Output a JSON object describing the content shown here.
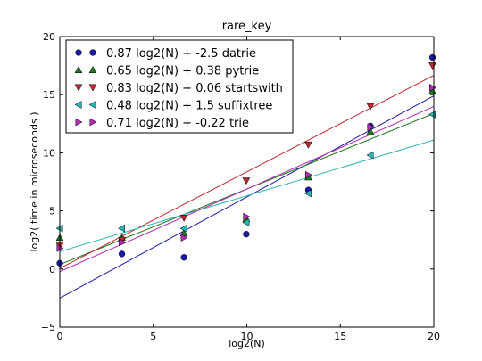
{
  "chart_data": {
    "type": "scatter",
    "title": "rare_key",
    "xlabel": "log2(N)",
    "ylabel": "log2( time in microseconds )",
    "xlim": [
      0,
      20
    ],
    "ylim": [
      -5,
      20
    ],
    "xticks": [
      "0",
      "5",
      "10",
      "15",
      "20"
    ],
    "yticks": [
      "−5",
      "0",
      "5",
      "10",
      "15",
      "20"
    ],
    "legend_position": "upper-left",
    "grid": false,
    "series": [
      {
        "name": "0.87 log2(N) + -2.5 datrie",
        "marker": "circle",
        "color": "#1a1aa6",
        "fit": {
          "slope": 0.87,
          "intercept": -2.5
        },
        "x": [
          0,
          3.32,
          6.64,
          9.97,
          13.29,
          16.61,
          19.93
        ],
        "y": [
          0.5,
          1.3,
          1.0,
          3.0,
          6.8,
          12.3,
          18.2
        ]
      },
      {
        "name": "0.65 log2(N) + 0.38 pytrie",
        "marker": "triangle-up",
        "color": "#1a7a1a",
        "fit": {
          "slope": 0.65,
          "intercept": 0.38
        },
        "x": [
          0,
          3.32,
          6.64,
          9.97,
          13.29,
          16.61,
          19.93
        ],
        "y": [
          2.7,
          2.7,
          3.1,
          4.3,
          7.9,
          11.8,
          15.3
        ]
      },
      {
        "name": "0.83 log2(N) + 0.06 startswith",
        "marker": "triangle-down",
        "color": "#c0282d",
        "fit": {
          "slope": 0.83,
          "intercept": 0.06
        },
        "x": [
          0,
          3.32,
          6.64,
          9.97,
          13.29,
          16.61,
          19.93
        ],
        "y": [
          2.0,
          2.5,
          4.4,
          7.6,
          10.7,
          14.0,
          17.5
        ]
      },
      {
        "name": "0.48 log2(N) + 1.5 suffixtree",
        "marker": "triangle-left",
        "color": "#2ab5b5",
        "fit": {
          "slope": 0.48,
          "intercept": 1.5
        },
        "x": [
          0,
          3.32,
          6.64,
          9.97,
          13.29,
          16.61,
          19.93
        ],
        "y": [
          3.5,
          3.5,
          3.5,
          4.0,
          6.5,
          9.8,
          13.3
        ]
      },
      {
        "name": "0.71 log2(N) + -0.22 trie",
        "marker": "triangle-right",
        "color": "#b52ab5",
        "fit": {
          "slope": 0.71,
          "intercept": -0.22
        },
        "x": [
          0,
          3.32,
          6.64,
          9.97,
          13.29,
          16.61,
          19.93
        ],
        "y": [
          1.8,
          2.3,
          2.7,
          4.5,
          8.1,
          12.2,
          15.6
        ]
      }
    ]
  }
}
